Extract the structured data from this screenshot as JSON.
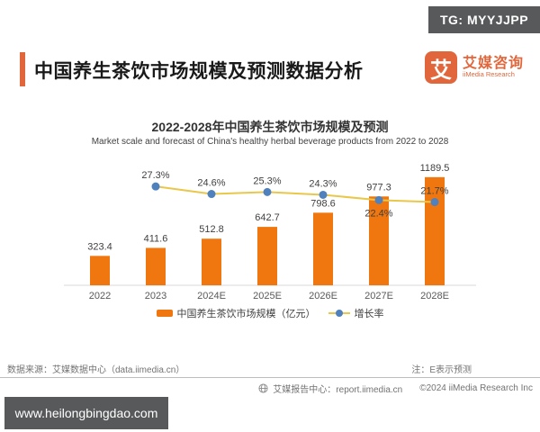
{
  "badges": {
    "tg": "TG: MYYJJPP",
    "watermark": "www.heilongbingdao.com"
  },
  "header": {
    "title": "中国养生茶饮市场规模及预测数据分析",
    "accent_color": "#e2663b",
    "logo": {
      "glyph": "艾",
      "name_cn": "艾媒咨询",
      "name_en": "iiMedia Research",
      "color": "#e2663b"
    }
  },
  "chart_data": {
    "type": "bar",
    "title": "2022-2028年中国养生茶饮市场规模及预测",
    "subtitle": "Market scale and forecast of China's healthy herbal beverage products from 2022 to 2028",
    "categories": [
      "2022",
      "2023",
      "2024E",
      "2025E",
      "2026E",
      "2027E",
      "2028E"
    ],
    "series": [
      {
        "name": "中国养生茶饮市场规模（亿元）",
        "type": "bar",
        "color": "#f0770f",
        "values": [
          323.4,
          411.6,
          512.8,
          642.7,
          798.6,
          977.3,
          1189.5
        ]
      },
      {
        "name": "增长率",
        "type": "line",
        "color": "#e9c74a",
        "marker_color": "#4e81bd",
        "values": [
          null,
          27.3,
          24.6,
          25.3,
          24.3,
          22.4,
          21.7
        ],
        "labels": [
          null,
          "27.3%",
          "24.6%",
          "25.3%",
          "24.3%",
          "22.4%",
          "21.7%"
        ],
        "label_below": [
          false,
          false,
          false,
          false,
          false,
          true,
          false
        ]
      }
    ],
    "bar_ylim": [
      0,
      1400
    ],
    "line_ylim": [
      20,
      30
    ],
    "grid": false,
    "legend_position": "bottom"
  },
  "footer": {
    "source": "数据来源：艾媒数据中心（data.iimedia.cn）",
    "note": "注：E表示预测",
    "report_center": "艾媒报告中心：report.iimedia.cn",
    "copyright": "©2024  iiMedia Research  Inc"
  }
}
